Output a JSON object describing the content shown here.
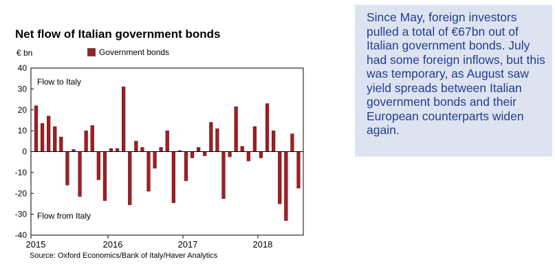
{
  "chart_data": {
    "type": "bar",
    "title": "Net flow of Italian government bonds",
    "ylabel": "€ bn",
    "ylim": [
      -40,
      40
    ],
    "yticks": [
      40,
      30,
      20,
      10,
      0,
      -10,
      -20,
      -30,
      -40
    ],
    "xticks": [
      "2015",
      "2016",
      "2017",
      "2018"
    ],
    "x_start": "2015-01",
    "x_end": "2018-08",
    "series": [
      {
        "name": "Government bonds",
        "color": "#a01f23",
        "values": [
          22,
          13.5,
          17,
          12,
          7,
          -16,
          1,
          -21.5,
          10,
          12.5,
          -13.5,
          -23.5,
          1.5,
          1.5,
          31,
          -25.5,
          5,
          2,
          -19,
          -8,
          2,
          10,
          -24.5,
          0.5,
          -14,
          -3,
          2,
          -2,
          14,
          11,
          -22.5,
          -2.5,
          21.5,
          2.5,
          -4.5,
          12,
          -3,
          23,
          10,
          -25,
          -33,
          8.5,
          -17.5
        ]
      }
    ],
    "annotations": [
      "Flow to Italy",
      "Flow from Italy"
    ],
    "grid": false,
    "legend_position": "top"
  },
  "source": "Source: Oxford Economics/Bank of Italy/Haver Analytics",
  "commentary": "Since May, foreign investors pulled a total of €67bn out of Italian government bonds. July had some foreign inflows, but this was temporary, as August saw yield spreads between Italian government bonds and their European counterparts widen again."
}
